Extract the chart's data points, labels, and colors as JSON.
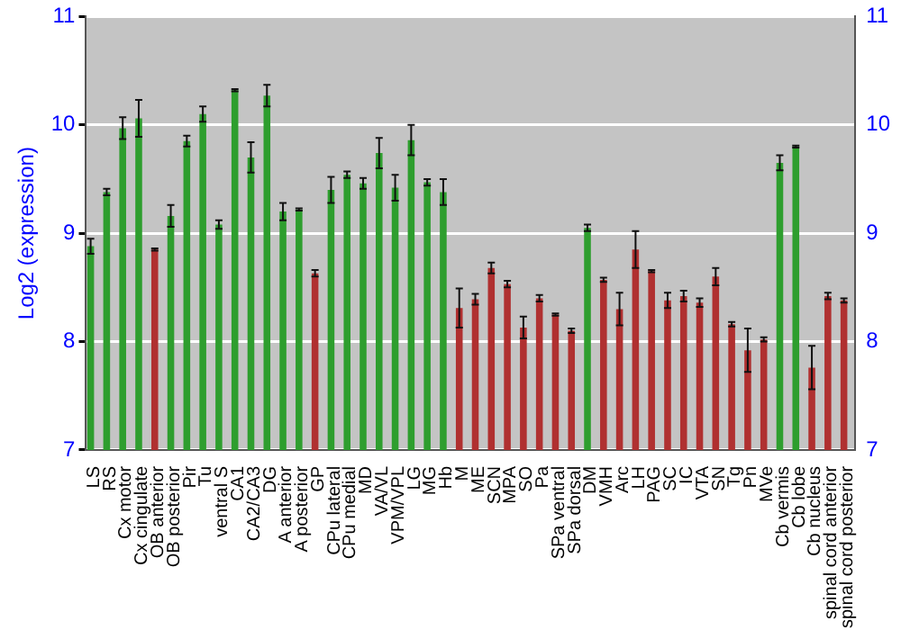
{
  "chart_data": {
    "type": "bar",
    "ylabel": "Log2 (expression)",
    "categories": [
      "LS",
      "RS",
      "Cx motor",
      "Cx cingulate",
      "OB anterior",
      "OB posterior",
      "Pir",
      "Tu",
      "ventral S",
      "CA1",
      "CA2/CA3",
      "DG",
      "A anterior",
      "A posterior",
      "GP",
      "CPu lateral",
      "CPu medial",
      "MD",
      "VA/VL",
      "VPM/VPL",
      "LG",
      "MG",
      "Hb",
      "M",
      "ME",
      "SCN",
      "MPA",
      "SO",
      "Pa",
      "SPa ventral",
      "SPa dorsal",
      "DM",
      "VMH",
      "Arc",
      "LH",
      "PAG",
      "SC",
      "IC",
      "VTA",
      "SN",
      "Tg",
      "Pn",
      "MVe",
      "Cb vermis",
      "Cb lobe",
      "Cb nucleus",
      "spinal cord anterior",
      "spinal cord posterior"
    ],
    "values": [
      8.88,
      9.38,
      9.97,
      10.06,
      8.85,
      9.16,
      9.85,
      10.1,
      9.08,
      10.32,
      9.7,
      10.27,
      9.2,
      9.22,
      8.63,
      9.4,
      9.54,
      9.46,
      9.74,
      9.42,
      9.86,
      9.47,
      9.38,
      8.31,
      8.39,
      8.68,
      8.53,
      8.13,
      8.4,
      8.25,
      8.1,
      9.05,
      8.57,
      8.3,
      8.85,
      8.65,
      8.38,
      8.42,
      8.36,
      8.6,
      8.16,
      7.92,
      8.02,
      9.65,
      9.8,
      7.76,
      8.42,
      8.38
    ],
    "errors": [
      0.07,
      0.03,
      0.1,
      0.17,
      0.01,
      0.1,
      0.05,
      0.07,
      0.04,
      0.01,
      0.14,
      0.1,
      0.08,
      0.01,
      0.03,
      0.12,
      0.03,
      0.05,
      0.14,
      0.12,
      0.14,
      0.03,
      0.12,
      0.18,
      0.05,
      0.05,
      0.03,
      0.1,
      0.03,
      0.01,
      0.02,
      0.03,
      0.02,
      0.15,
      0.17,
      0.01,
      0.07,
      0.05,
      0.04,
      0.08,
      0.02,
      0.2,
      0.02,
      0.07,
      0.01,
      0.2,
      0.03,
      0.02
    ],
    "colors": [
      "#2e9e2e",
      "#2e9e2e",
      "#2e9e2e",
      "#2e9e2e",
      "#b03030",
      "#2e9e2e",
      "#2e9e2e",
      "#2e9e2e",
      "#2e9e2e",
      "#2e9e2e",
      "#2e9e2e",
      "#2e9e2e",
      "#2e9e2e",
      "#2e9e2e",
      "#b03030",
      "#2e9e2e",
      "#2e9e2e",
      "#2e9e2e",
      "#2e9e2e",
      "#2e9e2e",
      "#2e9e2e",
      "#2e9e2e",
      "#2e9e2e",
      "#b03030",
      "#b03030",
      "#b03030",
      "#b03030",
      "#b03030",
      "#b03030",
      "#b03030",
      "#b03030",
      "#2e9e2e",
      "#b03030",
      "#b03030",
      "#b03030",
      "#b03030",
      "#b03030",
      "#b03030",
      "#b03030",
      "#b03030",
      "#b03030",
      "#b03030",
      "#b03030",
      "#2e9e2e",
      "#2e9e2e",
      "#b03030",
      "#b03030",
      "#b03030"
    ],
    "ylim": [
      7,
      11
    ],
    "yticks": [
      7,
      8,
      9,
      10,
      11
    ],
    "y2lim": [
      7,
      11
    ],
    "y2ticks": [
      7,
      8,
      9,
      10,
      11
    ],
    "grid": "y",
    "legend": false
  }
}
